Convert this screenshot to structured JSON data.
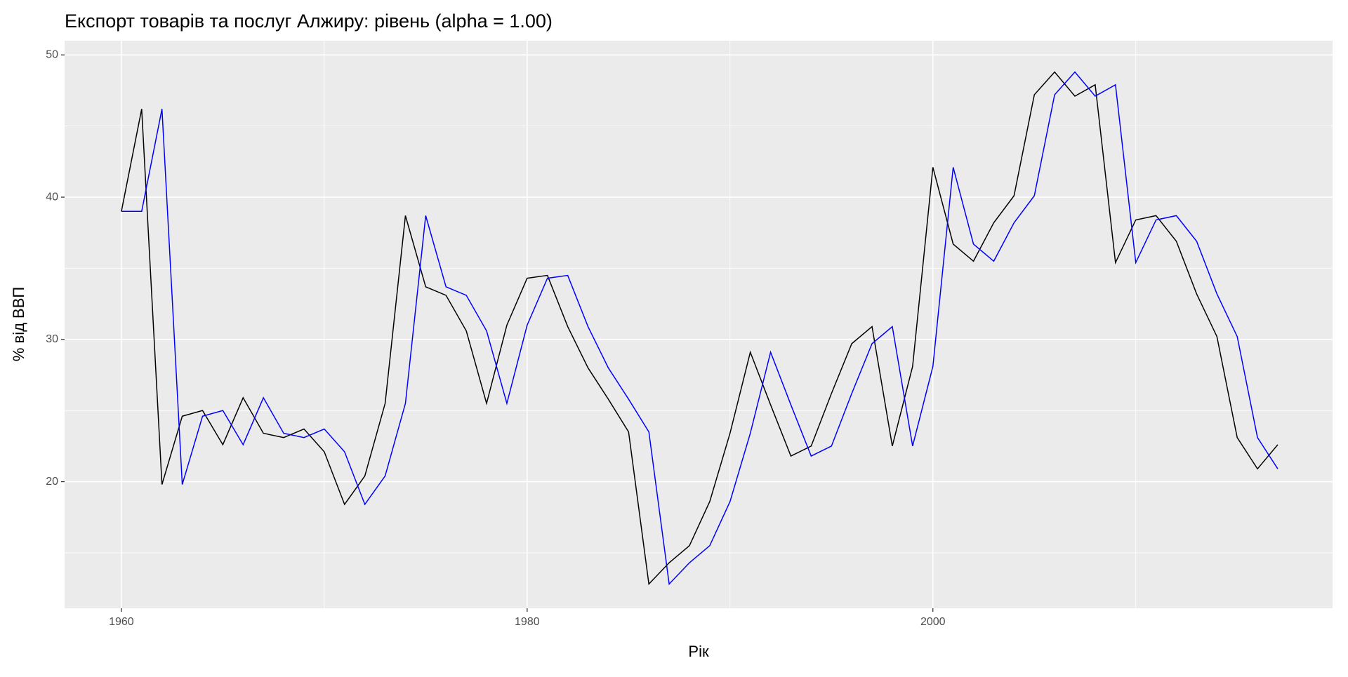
{
  "chart_data": {
    "type": "line",
    "title": "Експорт товарів та послуг Алжиру: рівень (alpha = 1.00)",
    "x_label": "Рік",
    "y_label": "% від ВВП",
    "x": [
      1960,
      1961,
      1962,
      1963,
      1964,
      1965,
      1966,
      1967,
      1968,
      1969,
      1970,
      1971,
      1972,
      1973,
      1974,
      1975,
      1976,
      1977,
      1978,
      1979,
      1980,
      1981,
      1982,
      1983,
      1984,
      1985,
      1986,
      1987,
      1988,
      1989,
      1990,
      1991,
      1992,
      1993,
      1994,
      1995,
      1996,
      1997,
      1998,
      1999,
      2000,
      2001,
      2002,
      2003,
      2004,
      2005,
      2006,
      2007,
      2008,
      2009,
      2010,
      2011,
      2012,
      2013,
      2014,
      2015,
      2016,
      2017
    ],
    "series": [
      {
        "color": "#000000",
        "values": [
          39.0,
          46.2,
          19.8,
          24.6,
          25.0,
          22.6,
          25.9,
          23.4,
          23.1,
          23.7,
          22.1,
          18.4,
          20.4,
          25.5,
          38.7,
          33.7,
          33.1,
          30.6,
          25.5,
          31.0,
          34.3,
          34.5,
          30.9,
          28.0,
          25.8,
          23.5,
          12.8,
          14.3,
          15.5,
          18.6,
          23.4,
          29.1,
          25.4,
          21.8,
          22.5,
          26.2,
          29.7,
          30.9,
          22.5,
          28.1,
          42.1,
          36.7,
          35.5,
          38.2,
          40.1,
          47.2,
          48.8,
          47.1,
          47.9,
          35.4,
          38.4,
          38.7,
          36.9,
          33.2,
          30.2,
          23.1,
          20.9,
          22.6
        ]
      },
      {
        "color": "#0000ff",
        "values": [
          39.0,
          39.0,
          46.2,
          19.8,
          24.6,
          25.0,
          22.6,
          25.9,
          23.4,
          23.1,
          23.7,
          22.1,
          18.4,
          20.4,
          25.5,
          38.7,
          33.7,
          33.1,
          30.6,
          25.5,
          31.0,
          34.3,
          34.5,
          30.9,
          28.0,
          25.8,
          23.5,
          12.8,
          14.3,
          15.5,
          18.6,
          23.4,
          29.1,
          25.4,
          21.8,
          22.5,
          26.2,
          29.7,
          30.9,
          22.5,
          28.1,
          42.1,
          36.7,
          35.5,
          38.2,
          40.1,
          47.2,
          48.8,
          47.1,
          47.9,
          35.4,
          38.4,
          38.7,
          36.9,
          33.2,
          30.2,
          23.1,
          20.9
        ]
      }
    ],
    "xlim": [
      1957.2,
      2019.7
    ],
    "ylim": [
      11.1,
      51.0
    ],
    "xticks": [
      1960,
      1980,
      2000
    ],
    "yticks": [
      20,
      30,
      40,
      50
    ],
    "grid": true
  }
}
